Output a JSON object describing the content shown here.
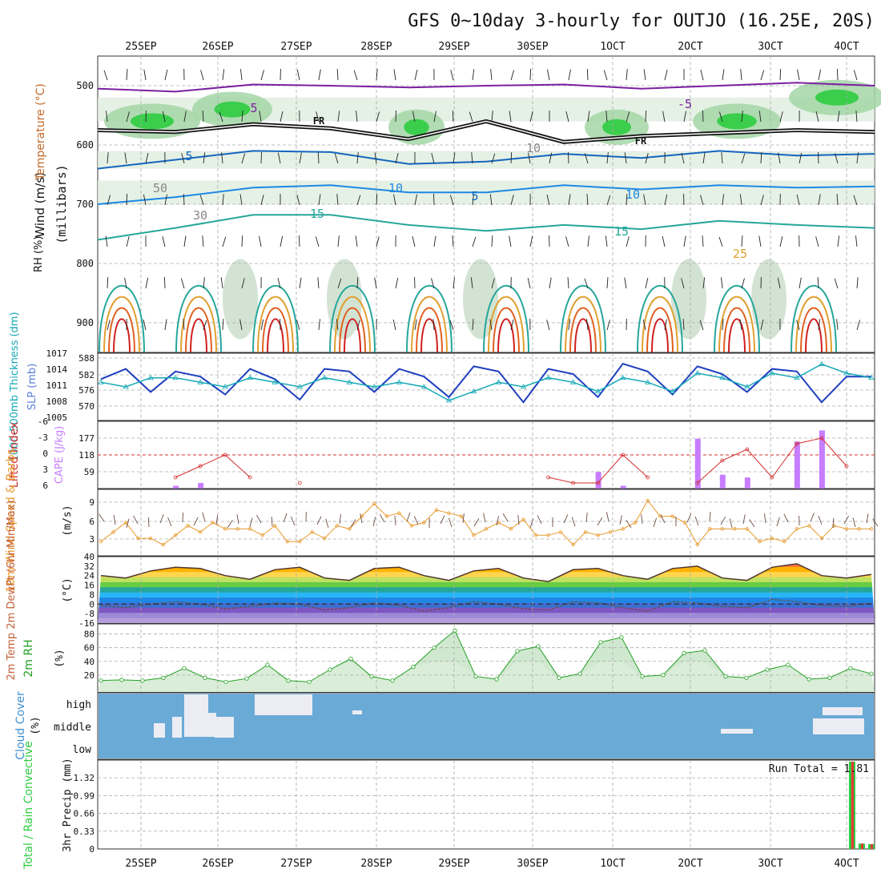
{
  "title": "GFS 0~10day 3-hourly for OUTJO (16.25E, 20S)",
  "colors": {
    "temp_cold": "#7b1fa2",
    "temp_mid": "#1565c0",
    "temp_warm": "#26a69a",
    "temp_hot": "#e65100",
    "rh_green": "#2ecc40",
    "thickness": "#1f3fbf",
    "slp": "#17a9b8",
    "lifted_index": "#d32f2f",
    "cape": "#c77dff",
    "wind_speed": "#e89a2c",
    "barb": "#6d4c41",
    "rh2m": "#22a022",
    "cloud_bg": "#6aaad6",
    "cloud_fill": "#ececf4",
    "precip_total": "#2ecc40",
    "precip_conv": "#e53935"
  },
  "chart_data": [
    {
      "panel": "sounding",
      "type": "contour",
      "x_ticks_top": [
        "25SEP",
        "26SEP",
        "27SEP",
        "28SEP",
        "29SEP",
        "30SEP",
        "1OCT",
        "2OCT",
        "3OCT",
        "4OCT"
      ],
      "x_ticks_bottom": [
        "25SEP",
        "26SEP",
        "27SEP",
        "28SEP",
        "29SEP",
        "30SEP",
        "1OCT",
        "2OCT",
        "3OCT",
        "4OCT"
      ],
      "ylabel": "(millibars)",
      "y_ticks": [
        "500",
        "600",
        "700",
        "800",
        "900"
      ],
      "y_values": [
        500,
        600,
        700,
        800,
        900
      ],
      "ylim": [
        450,
        950
      ],
      "legend_left": [
        "Wind (m/s)",
        "Temperature (°C)",
        "RH (%)"
      ],
      "contour_labels": [
        "5",
        "FR",
        "5",
        "10",
        "5",
        "10",
        "15",
        "15",
        "25",
        "-5",
        "FR",
        "30",
        "50",
        "10"
      ],
      "isotherms": [
        {
          "label": "-5",
          "pressure": [
            505,
            510,
            498,
            500,
            503,
            500,
            498,
            505,
            500,
            495,
            500
          ]
        },
        {
          "label": "FR",
          "pressure": [
            575,
            578,
            565,
            572,
            590,
            560,
            595,
            585,
            580,
            575,
            578
          ]
        },
        {
          "label": "5",
          "pressure": [
            640,
            625,
            610,
            612,
            632,
            628,
            615,
            622,
            610,
            618,
            615
          ]
        },
        {
          "label": "10",
          "pressure": [
            700,
            688,
            672,
            668,
            680,
            680,
            668,
            675,
            668,
            672,
            670
          ]
        },
        {
          "label": "15",
          "pressure": [
            760,
            740,
            718,
            718,
            735,
            745,
            735,
            742,
            728,
            735,
            740
          ]
        }
      ],
      "x_days": [
        0,
        1,
        2,
        3,
        4,
        5,
        6,
        7,
        8,
        9,
        10
      ]
    },
    {
      "panel": "thickness_slp",
      "type": "line",
      "ylabel_left": "1000-500mb Thickness (dm)",
      "ylabel_right": "SLP (mb)",
      "left_ticks": [
        "588",
        "582",
        "576",
        "570"
      ],
      "right_ticks": [
        "1017",
        "1014",
        "1011",
        "1008",
        "1005"
      ],
      "series": [
        {
          "name": "Thickness",
          "values": [
            583,
            587,
            578,
            586,
            584,
            577,
            587,
            583,
            575,
            587,
            586,
            578,
            587,
            584,
            576,
            588,
            586,
            574,
            587,
            585,
            576,
            589,
            586,
            577,
            588,
            585,
            578,
            587,
            586,
            574,
            584,
            584
          ]
        },
        {
          "name": "SLP",
          "values": [
            1012,
            1011,
            1013,
            1013,
            1012,
            1011,
            1013,
            1012,
            1011,
            1013,
            1012,
            1011,
            1012,
            1011,
            1008,
            1010,
            1012,
            1011,
            1013,
            1012,
            1010,
            1013,
            1012,
            1010,
            1014,
            1013,
            1011,
            1014,
            1013,
            1016,
            1014,
            1013
          ]
        }
      ]
    },
    {
      "panel": "lifted_cape",
      "type": "bar+line",
      "ylabel_left": "Lifted Index",
      "ylabel_right": "CAPE (J/kg)",
      "left_ticks": [
        "-6",
        "-3",
        "0",
        "3",
        "6"
      ],
      "right_ticks": [
        "177",
        "118",
        "59"
      ],
      "series": [
        {
          "name": "Lifted Index",
          "values": [
            null,
            null,
            null,
            4,
            2,
            0,
            4,
            null,
            5,
            null,
            null,
            null,
            null,
            null,
            null,
            null,
            null,
            null,
            4,
            5,
            5,
            0,
            4,
            null,
            5,
            1,
            -1,
            4,
            -2,
            -3,
            2,
            null
          ]
        },
        {
          "name": "CAPE",
          "values": [
            0,
            0,
            0,
            10,
            20,
            0,
            0,
            0,
            0,
            0,
            0,
            0,
            0,
            0,
            0,
            0,
            0,
            0,
            0,
            0,
            60,
            10,
            0,
            0,
            180,
            50,
            40,
            0,
            170,
            210,
            0,
            0
          ]
        }
      ]
    },
    {
      "panel": "wind10m",
      "type": "line",
      "ylabel_left": "10m Wind Speed & Barbs",
      "ylabel_right": "(m/s)",
      "y_ticks": [
        "9",
        "6",
        "3"
      ],
      "series": [
        {
          "name": "Wind Speed",
          "values": [
            4,
            5,
            3,
            4,
            5,
            6,
            4,
            5,
            3,
            4,
            6,
            8,
            7,
            6,
            8,
            5,
            5,
            6,
            4,
            3,
            5,
            4,
            9,
            7,
            3,
            6,
            4,
            3,
            5,
            4,
            6,
            4
          ]
        }
      ]
    },
    {
      "panel": "temp2m",
      "type": "area",
      "ylabel_left": "2m Temp 2m DewPt (6hr Min/Max)",
      "ylabel_right": "(°C)",
      "y_ticks": [
        "40",
        "32",
        "24",
        "16",
        "8",
        "0",
        "-8",
        "-16"
      ],
      "series": [
        {
          "name": "2m Temp",
          "values": [
            24,
            22,
            28,
            31,
            30,
            24,
            21,
            29,
            31,
            22,
            20,
            30,
            31,
            24,
            20,
            28,
            30,
            22,
            19,
            29,
            30,
            24,
            21,
            30,
            32,
            22,
            20,
            31,
            34,
            24,
            22,
            25
          ]
        },
        {
          "name": "2m DewPt",
          "values": [
            -1,
            -3,
            0,
            2,
            0,
            -4,
            -2,
            1,
            0,
            -5,
            -3,
            1,
            -1,
            -6,
            -3,
            2,
            0,
            -4,
            -5,
            2,
            1,
            -3,
            -6,
            2,
            1,
            -2,
            -3,
            4,
            2,
            -1,
            -2,
            1
          ]
        }
      ]
    },
    {
      "panel": "rh2m",
      "type": "area",
      "ylabel_left": "2m RH",
      "ylabel_right": "(%)",
      "y_ticks": [
        "80",
        "60",
        "40",
        "20"
      ],
      "series": [
        {
          "name": "2m RH",
          "values": [
            12,
            13,
            12,
            16,
            30,
            16,
            10,
            15,
            35,
            12,
            10,
            28,
            44,
            18,
            12,
            32,
            60,
            85,
            18,
            14,
            55,
            62,
            16,
            22,
            68,
            75,
            18,
            20,
            52,
            56,
            18,
            16,
            28,
            35,
            14,
            16,
            30,
            22
          ]
        }
      ]
    },
    {
      "panel": "cloud",
      "type": "heatmap",
      "ylabel_left": "Cloud Cover",
      "ylabel_right": "(%)",
      "levels": [
        "high",
        "middle",
        "low"
      ]
    },
    {
      "panel": "precip",
      "type": "bar",
      "ylabel_left": "Total / Rain Convective",
      "ylabel_right": "3hr Precip (mm)",
      "y_ticks": [
        "1.32",
        "0.99",
        "0.66",
        "0.33",
        "0"
      ],
      "run_total_label": "Run Total =",
      "run_total_value": "1.81",
      "series": [
        {
          "name": "Total",
          "values": [
            0,
            0,
            0,
            0,
            0,
            0,
            0,
            0,
            0,
            0,
            0,
            0,
            0,
            0,
            0,
            0,
            0,
            0,
            0,
            0,
            0,
            0,
            0,
            0,
            0,
            0,
            0,
            0,
            0,
            0,
            0,
            0,
            0,
            0,
            0,
            0,
            0,
            0,
            0,
            0,
            0,
            0,
            0,
            0,
            0,
            0,
            0,
            0,
            0,
            0,
            0,
            0,
            0,
            0,
            0,
            0,
            0,
            0,
            0,
            0,
            0,
            0,
            0,
            0,
            0,
            0,
            0,
            0,
            0,
            0,
            0,
            0,
            0,
            0,
            0,
            0,
            0,
            0,
            1.62,
            0.1,
            0.09
          ]
        },
        {
          "name": "Convective",
          "values": [
            0,
            0,
            0,
            0,
            0,
            0,
            0,
            0,
            0,
            0,
            0,
            0,
            0,
            0,
            0,
            0,
            0,
            0,
            0,
            0,
            0,
            0,
            0,
            0,
            0,
            0,
            0,
            0,
            0,
            0,
            0,
            0,
            0,
            0,
            0,
            0,
            0,
            0,
            0,
            0,
            0,
            0,
            0,
            0,
            0,
            0,
            0,
            0,
            0,
            0,
            0,
            0,
            0,
            0,
            0,
            0,
            0,
            0,
            0,
            0,
            0,
            0,
            0,
            0,
            0,
            0,
            0,
            0,
            0,
            0,
            0,
            0,
            0,
            0,
            0,
            0,
            0,
            0,
            1.62,
            0.1,
            0.09
          ]
        }
      ]
    }
  ]
}
